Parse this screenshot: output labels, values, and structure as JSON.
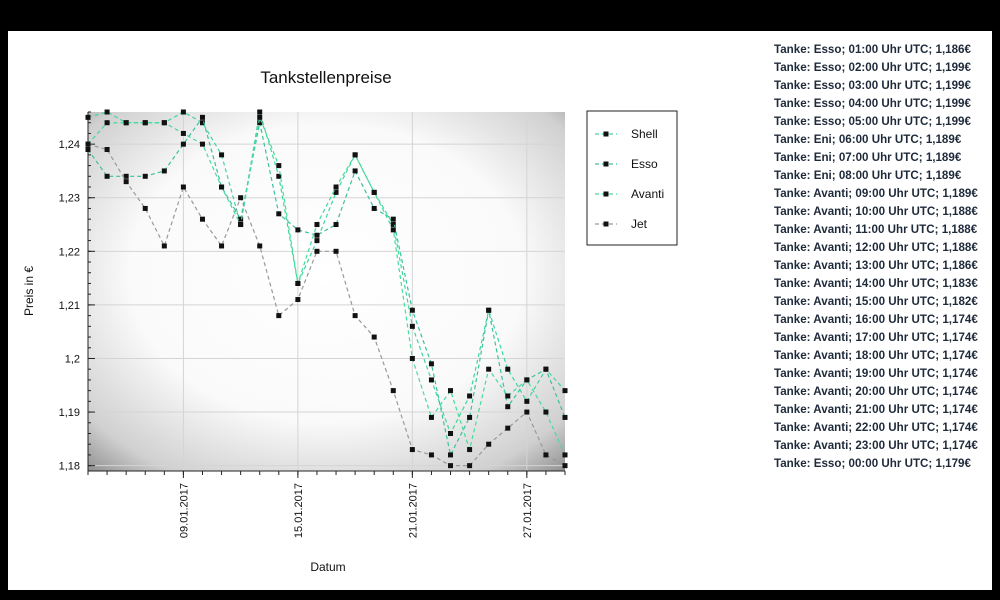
{
  "chart_data": {
    "type": "line",
    "title": "Tankstellenpreise",
    "xlabel": "Datum",
    "ylabel": "Preis in €",
    "xlim": [
      "2017-01-04",
      "2017-01-29"
    ],
    "ylim": [
      1.179,
      1.246
    ],
    "y_ticks": [
      1.18,
      1.19,
      1.2,
      1.21,
      1.22,
      1.23,
      1.24
    ],
    "y_tick_labels": [
      "1,18",
      "1,19",
      "1,2",
      "1,21",
      "1,22",
      "1,23",
      "1,24"
    ],
    "x_ticks": [
      "2017-01-09",
      "2017-01-15",
      "2017-01-21",
      "2017-01-27"
    ],
    "x_tick_labels": [
      "09.01.2017",
      "15.01.2017",
      "21.01.2017",
      "27.01.2017"
    ],
    "grid": true,
    "legend_position": "right",
    "series": [
      {
        "name": "Shell",
        "color": "#3fd6a0",
        "marker_color": "#111111",
        "x": [
          "2017-01-04",
          "2017-01-05",
          "2017-01-06",
          "2017-01-07",
          "2017-01-08",
          "2017-01-09",
          "2017-01-10",
          "2017-01-11",
          "2017-01-12",
          "2017-01-13",
          "2017-01-14",
          "2017-01-15",
          "2017-01-16",
          "2017-01-17",
          "2017-01-18",
          "2017-01-19",
          "2017-01-20",
          "2017-01-21",
          "2017-01-22",
          "2017-01-23",
          "2017-01-24",
          "2017-01-25",
          "2017-01-26",
          "2017-01-27",
          "2017-01-28",
          "2017-01-29"
        ],
        "values": [
          1.245,
          1.246,
          1.244,
          1.244,
          1.244,
          1.246,
          1.244,
          1.238,
          1.225,
          1.246,
          1.234,
          1.214,
          1.222,
          1.231,
          1.238,
          1.231,
          1.225,
          1.206,
          1.196,
          1.186,
          1.193,
          1.209,
          1.198,
          1.192,
          1.198,
          1.194
        ]
      },
      {
        "name": "Esso",
        "color": "#3cc0a0",
        "marker_color": "#111111",
        "x": [
          "2017-01-04",
          "2017-01-05",
          "2017-01-06",
          "2017-01-07",
          "2017-01-08",
          "2017-01-09",
          "2017-01-10",
          "2017-01-11",
          "2017-01-12",
          "2017-01-13",
          "2017-01-14",
          "2017-01-15",
          "2017-01-16",
          "2017-01-17",
          "2017-01-18",
          "2017-01-19",
          "2017-01-20",
          "2017-01-21",
          "2017-01-22",
          "2017-01-23",
          "2017-01-24",
          "2017-01-25",
          "2017-01-26",
          "2017-01-27",
          "2017-01-28",
          "2017-01-29"
        ],
        "values": [
          1.239,
          1.234,
          1.234,
          1.234,
          1.235,
          1.24,
          1.245,
          1.232,
          1.226,
          1.244,
          1.227,
          1.224,
          1.223,
          1.225,
          1.235,
          1.228,
          1.226,
          1.209,
          1.199,
          1.182,
          1.189,
          1.209,
          1.191,
          1.196,
          1.198,
          1.189
        ]
      },
      {
        "name": "Avanti",
        "color": "#44dd99",
        "marker_color": "#111111",
        "x": [
          "2017-01-04",
          "2017-01-05",
          "2017-01-06",
          "2017-01-07",
          "2017-01-08",
          "2017-01-09",
          "2017-01-10",
          "2017-01-11",
          "2017-01-12",
          "2017-01-13",
          "2017-01-14",
          "2017-01-15",
          "2017-01-16",
          "2017-01-17",
          "2017-01-18",
          "2017-01-19",
          "2017-01-20",
          "2017-01-21",
          "2017-01-22",
          "2017-01-23",
          "2017-01-24",
          "2017-01-25",
          "2017-01-26",
          "2017-01-27",
          "2017-01-28",
          "2017-01-29"
        ],
        "values": [
          1.24,
          1.244,
          1.244,
          1.244,
          1.244,
          1.242,
          1.24,
          1.232,
          1.225,
          1.245,
          1.236,
          1.214,
          1.225,
          1.232,
          1.238,
          1.231,
          1.224,
          1.2,
          1.189,
          1.194,
          1.183,
          1.198,
          1.193,
          1.196,
          1.19,
          1.182
        ]
      },
      {
        "name": "Jet",
        "color": "#999999",
        "marker_color": "#111111",
        "x": [
          "2017-01-04",
          "2017-01-05",
          "2017-01-06",
          "2017-01-07",
          "2017-01-08",
          "2017-01-09",
          "2017-01-10",
          "2017-01-11",
          "2017-01-12",
          "2017-01-13",
          "2017-01-14",
          "2017-01-15",
          "2017-01-16",
          "2017-01-17",
          "2017-01-18",
          "2017-01-19",
          "2017-01-20",
          "2017-01-21",
          "2017-01-22",
          "2017-01-23",
          "2017-01-24",
          "2017-01-25",
          "2017-01-26",
          "2017-01-27",
          "2017-01-28",
          "2017-01-29"
        ],
        "values": [
          1.24,
          1.239,
          1.233,
          1.228,
          1.221,
          1.232,
          1.226,
          1.221,
          1.23,
          1.221,
          1.208,
          1.211,
          1.22,
          1.22,
          1.208,
          1.204,
          1.194,
          1.183,
          1.182,
          1.18,
          1.18,
          1.184,
          1.187,
          1.19,
          1.182,
          1.18
        ]
      }
    ]
  },
  "log": [
    "Tanke: Esso; 01:00 Uhr UTC; 1,186€",
    "Tanke: Esso; 02:00 Uhr UTC; 1,199€",
    "Tanke: Esso; 03:00 Uhr UTC; 1,199€",
    "Tanke: Esso; 04:00 Uhr UTC; 1,199€",
    "Tanke: Esso; 05:00 Uhr UTC; 1,199€",
    "Tanke: Eni; 06:00 Uhr UTC; 1,189€",
    "Tanke: Eni; 07:00 Uhr UTC; 1,189€",
    "Tanke: Eni; 08:00 Uhr UTC; 1,189€",
    "Tanke: Avanti; 09:00 Uhr UTC; 1,189€",
    "Tanke: Avanti; 10:00 Uhr UTC; 1,188€",
    "Tanke: Avanti; 11:00 Uhr UTC; 1,188€",
    "Tanke: Avanti; 12:00 Uhr UTC; 1,188€",
    "Tanke: Avanti; 13:00 Uhr UTC; 1,186€",
    "Tanke: Avanti; 14:00 Uhr UTC; 1,183€",
    "Tanke: Avanti; 15:00 Uhr UTC; 1,182€",
    "Tanke: Avanti; 16:00 Uhr UTC; 1,174€",
    "Tanke: Avanti; 17:00 Uhr UTC; 1,174€",
    "Tanke: Avanti; 18:00 Uhr UTC; 1,174€",
    "Tanke: Avanti; 19:00 Uhr UTC; 1,174€",
    "Tanke: Avanti; 20:00 Uhr UTC; 1,174€",
    "Tanke: Avanti; 21:00 Uhr UTC; 1,174€",
    "Tanke: Avanti; 22:00 Uhr UTC; 1,174€",
    "Tanke: Avanti; 23:00 Uhr UTC; 1,174€",
    "Tanke: Esso; 00:00 Uhr UTC; 1,179€"
  ]
}
